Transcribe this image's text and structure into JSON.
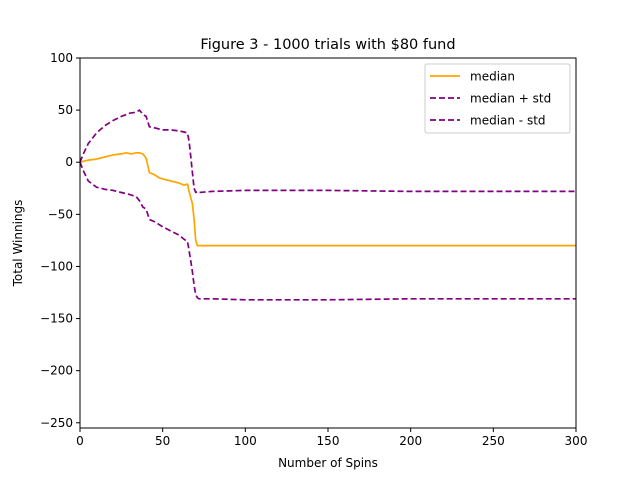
{
  "chart_data": {
    "type": "line",
    "title": "Figure 3 - 1000 trials with $80 fund",
    "xlabel": "Number of Spins",
    "ylabel": "Total Winnings",
    "xlim": [
      0,
      300
    ],
    "ylim": [
      -255,
      100
    ],
    "xticks": [
      0,
      50,
      100,
      150,
      200,
      250,
      300
    ],
    "yticks": [
      100,
      50,
      0,
      -50,
      -100,
      -150,
      -200,
      -250
    ],
    "xtick_labels": [
      "0",
      "50",
      "100",
      "150",
      "200",
      "250",
      "300"
    ],
    "ytick_labels": [
      "100",
      "50",
      "0",
      "−50",
      "−100",
      "−150",
      "−200",
      "−250"
    ],
    "grid": false,
    "legend_position": "upper right",
    "series": [
      {
        "name": "median",
        "color": "#ffa500",
        "style": "solid",
        "x": [
          0,
          5,
          10,
          15,
          20,
          25,
          28,
          31,
          34,
          36,
          38,
          40,
          42,
          45,
          48,
          50,
          55,
          60,
          63,
          65,
          66,
          68,
          69,
          70,
          71,
          72,
          80,
          100,
          150,
          200,
          250,
          300
        ],
        "y": [
          0,
          2,
          3,
          5,
          7,
          8,
          9,
          8,
          9,
          9,
          8,
          4,
          -10,
          -12,
          -15,
          -16,
          -18,
          -20,
          -22,
          -21,
          -28,
          -40,
          -55,
          -75,
          -80,
          -80,
          -80,
          -80,
          -80,
          -80,
          -80,
          -80
        ]
      },
      {
        "name": "median + std",
        "color": "#800080",
        "style": "dashed",
        "x": [
          0,
          2,
          5,
          10,
          15,
          20,
          25,
          30,
          34,
          36,
          38,
          40,
          42,
          45,
          50,
          55,
          60,
          63,
          65,
          66,
          67,
          68,
          69,
          70,
          71,
          72,
          80,
          100,
          150,
          200,
          250,
          300
        ],
        "y": [
          0,
          8,
          18,
          28,
          35,
          40,
          44,
          47,
          48,
          50,
          46,
          44,
          34,
          33,
          31,
          31,
          30,
          29,
          28,
          20,
          5,
          -10,
          -25,
          -29,
          -28,
          -29,
          -28,
          -27,
          -27,
          -28,
          -28,
          -28
        ]
      },
      {
        "name": "median - std",
        "color": "#800080",
        "style": "dashed",
        "x": [
          0,
          2,
          5,
          10,
          15,
          20,
          25,
          30,
          34,
          36,
          38,
          40,
          42,
          45,
          50,
          55,
          60,
          63,
          65,
          66,
          67,
          68,
          69,
          70,
          71,
          72,
          80,
          100,
          150,
          200,
          250,
          300
        ],
        "y": [
          0,
          -8,
          -18,
          -24,
          -26,
          -27,
          -29,
          -31,
          -33,
          -37,
          -43,
          -45,
          -55,
          -57,
          -62,
          -66,
          -70,
          -74,
          -76,
          -85,
          -95,
          -105,
          -118,
          -127,
          -130,
          -131,
          -131,
          -132,
          -132,
          -131,
          -131,
          -131
        ]
      }
    ]
  }
}
